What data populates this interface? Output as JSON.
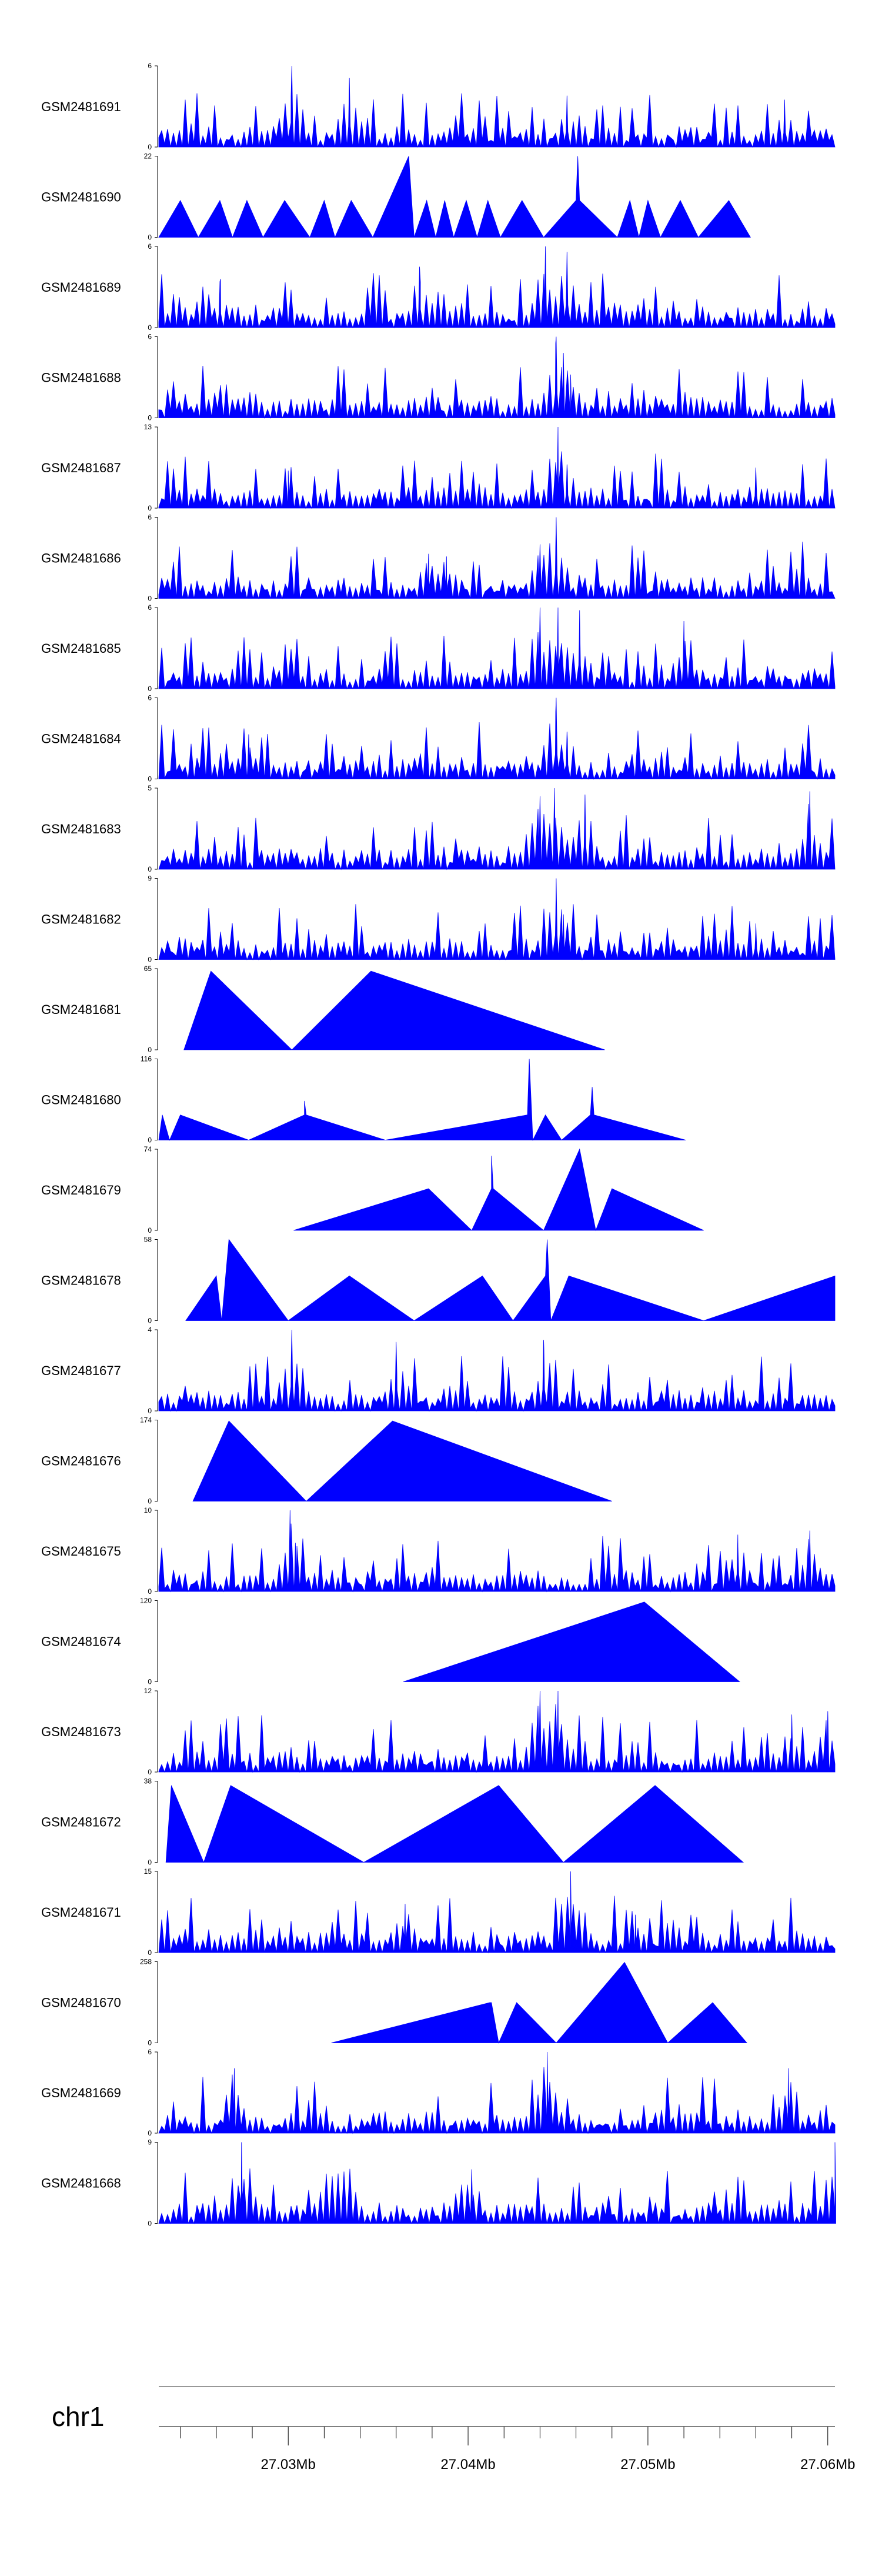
{
  "chart_data": {
    "type": "area",
    "title": "",
    "chromosome": "chr1",
    "xlim": [
      27.0228,
      27.0604
    ],
    "x_axis": {
      "major_ticks": [
        27.03,
        27.04,
        27.05,
        27.06
      ],
      "major_labels": [
        "27.03Mb",
        "27.04Mb",
        "27.05Mb",
        "27.06Mb"
      ],
      "minor_ticks": [
        27.024,
        27.026,
        27.028,
        27.032,
        27.034,
        27.036,
        27.038,
        27.042,
        27.044,
        27.046,
        27.048,
        27.052,
        27.054,
        27.056,
        27.058
      ]
    },
    "color": "#0000ff",
    "tracks": [
      {
        "name": "GSM2481691",
        "ymax": 6,
        "style": "dense",
        "range": [
          27.0228,
          27.0604
        ],
        "peaks": [
          [
            27.0302,
            6.0
          ],
          [
            27.0334,
            5.1
          ],
          [
            27.0455,
            3.8
          ],
          [
            27.0576,
            3.5
          ]
        ]
      },
      {
        "name": "GSM2481690",
        "ymax": 22,
        "style": "sparse",
        "points": [
          [
            27.0228,
            0
          ],
          [
            27.024,
            10
          ],
          [
            27.025,
            0
          ],
          [
            27.0262,
            10
          ],
          [
            27.0269,
            0
          ],
          [
            27.0277,
            10
          ],
          [
            27.0286,
            0
          ],
          [
            27.0298,
            10
          ],
          [
            27.0312,
            0
          ],
          [
            27.032,
            10
          ],
          [
            27.0326,
            0
          ],
          [
            27.0335,
            10
          ],
          [
            27.0347,
            0
          ],
          [
            27.0367,
            22
          ],
          [
            27.037,
            0
          ],
          [
            27.0377,
            10
          ],
          [
            27.0382,
            0
          ],
          [
            27.0387,
            10
          ],
          [
            27.0392,
            0
          ],
          [
            27.0399,
            10
          ],
          [
            27.0405,
            0
          ],
          [
            27.0411,
            10
          ],
          [
            27.0418,
            0
          ],
          [
            27.043,
            10
          ],
          [
            27.0442,
            0
          ],
          [
            27.046,
            10
          ],
          [
            27.0461,
            22
          ],
          [
            27.0462,
            10
          ],
          [
            27.0483,
            0
          ],
          [
            27.049,
            10
          ],
          [
            27.0495,
            0
          ],
          [
            27.05,
            10
          ],
          [
            27.0507,
            0
          ],
          [
            27.0518,
            10
          ],
          [
            27.0528,
            0
          ],
          [
            27.0545,
            10
          ],
          [
            27.0557,
            0
          ]
        ]
      },
      {
        "name": "GSM2481689",
        "ymax": 6,
        "style": "dense",
        "range": [
          27.0228,
          27.0604
        ],
        "peaks": [
          [
            27.0443,
            6.0
          ],
          [
            27.0455,
            5.6
          ],
          [
            27.0373,
            4.5
          ],
          [
            27.0262,
            3.4
          ]
        ]
      },
      {
        "name": "GSM2481688",
        "ymax": 6,
        "style": "dense",
        "range": [
          27.0228,
          27.0604
        ],
        "peaks": [
          [
            27.0449,
            6.0
          ],
          [
            27.0453,
            4.8
          ],
          [
            27.0457,
            3.2
          ]
        ]
      },
      {
        "name": "GSM2481687",
        "ymax": 13,
        "style": "dense",
        "range": [
          27.0228,
          27.0604
        ],
        "peaks": [
          [
            27.045,
            13.0
          ],
          [
            27.0455,
            7.0
          ],
          [
            27.03,
            6.0
          ],
          [
            27.056,
            6.5
          ]
        ]
      },
      {
        "name": "GSM2481686",
        "ymax": 6,
        "style": "dense",
        "range": [
          27.0228,
          27.0604
        ],
        "peaks": [
          [
            27.0449,
            6.0
          ],
          [
            27.044,
            4.0
          ],
          [
            27.0378,
            3.3
          ],
          [
            27.0388,
            3.1
          ]
        ]
      },
      {
        "name": "GSM2481685",
        "ymax": 6,
        "style": "dense",
        "range": [
          27.0228,
          27.0604
        ],
        "peaks": [
          [
            27.044,
            6.0
          ],
          [
            27.045,
            6.0
          ],
          [
            27.0462,
            5.8
          ],
          [
            27.052,
            5.0
          ]
        ]
      },
      {
        "name": "GSM2481684",
        "ymax": 6,
        "style": "dense",
        "range": [
          27.0228,
          27.0604
        ],
        "peaks": [
          [
            27.0449,
            6.0
          ],
          [
            27.0455,
            3.5
          ],
          [
            27.0278,
            3.3
          ]
        ]
      },
      {
        "name": "GSM2481683",
        "ymax": 5,
        "style": "dense",
        "range": [
          27.0228,
          27.0604
        ],
        "peaks": [
          [
            27.0448,
            5.0
          ],
          [
            27.044,
            4.5
          ],
          [
            27.059,
            4.8
          ],
          [
            27.0465,
            4.6
          ]
        ]
      },
      {
        "name": "GSM2481682",
        "ymax": 9,
        "style": "dense",
        "range": [
          27.0228,
          27.0604
        ],
        "peaks": [
          [
            27.0449,
            9.0
          ],
          [
            27.0453,
            5.0
          ],
          [
            27.056,
            4.0
          ]
        ]
      },
      {
        "name": "GSM2481681",
        "ymax": 65,
        "style": "sparse",
        "points": [
          [
            27.0242,
            0
          ],
          [
            27.0257,
            63
          ],
          [
            27.0302,
            0
          ],
          [
            27.0346,
            63
          ],
          [
            27.0476,
            0
          ]
        ]
      },
      {
        "name": "GSM2481680",
        "ymax": 116,
        "style": "sparse",
        "points": [
          [
            27.0228,
            0
          ],
          [
            27.023,
            36
          ],
          [
            27.0234,
            0
          ],
          [
            27.024,
            36
          ],
          [
            27.0278,
            0
          ],
          [
            27.0309,
            36
          ],
          [
            27.0309,
            56
          ],
          [
            27.031,
            36
          ],
          [
            27.0354,
            0
          ],
          [
            27.0433,
            36
          ],
          [
            27.0434,
            116
          ],
          [
            27.0436,
            0
          ],
          [
            27.0443,
            36
          ],
          [
            27.0452,
            0
          ],
          [
            27.0468,
            36
          ],
          [
            27.0469,
            76
          ],
          [
            27.047,
            36
          ],
          [
            27.0521,
            0
          ]
        ]
      },
      {
        "name": "GSM2481679",
        "ymax": 74,
        "style": "sparse",
        "points": [
          [
            27.0303,
            0
          ],
          [
            27.0378,
            38
          ],
          [
            27.0402,
            0
          ],
          [
            27.0413,
            38
          ],
          [
            27.0413,
            68
          ],
          [
            27.0414,
            38
          ],
          [
            27.0442,
            0
          ],
          [
            27.0462,
            74
          ],
          [
            27.0471,
            0
          ],
          [
            27.048,
            38
          ],
          [
            27.0531,
            0
          ]
        ]
      },
      {
        "name": "GSM2481678",
        "ymax": 58,
        "style": "sparse",
        "points": [
          [
            27.0243,
            0
          ],
          [
            27.026,
            32
          ],
          [
            27.0263,
            0
          ],
          [
            27.0267,
            58
          ],
          [
            27.03,
            0
          ],
          [
            27.0334,
            32
          ],
          [
            27.037,
            0
          ],
          [
            27.0408,
            32
          ],
          [
            27.0425,
            0
          ],
          [
            27.0443,
            32
          ],
          [
            27.0444,
            58
          ],
          [
            27.0446,
            0
          ],
          [
            27.0456,
            32
          ],
          [
            27.0531,
            0
          ],
          [
            27.0604,
            32
          ],
          [
            27.0604,
            0
          ]
        ]
      },
      {
        "name": "GSM2481677",
        "ymax": 4,
        "style": "dense",
        "range": [
          27.0228,
          27.0604
        ],
        "peaks": [
          [
            27.0302,
            4.0
          ],
          [
            27.0442,
            3.5
          ],
          [
            27.036,
            3.4
          ]
        ]
      },
      {
        "name": "GSM2481676",
        "ymax": 174,
        "style": "sparse",
        "points": [
          [
            27.0247,
            0
          ],
          [
            27.0267,
            172
          ],
          [
            27.031,
            0
          ],
          [
            27.0358,
            172
          ],
          [
            27.048,
            0
          ]
        ]
      },
      {
        "name": "GSM2481675",
        "ymax": 10,
        "style": "dense",
        "range": [
          27.0228,
          27.0604
        ],
        "peaks": [
          [
            27.0301,
            10.0
          ],
          [
            27.0304,
            6.0
          ],
          [
            27.055,
            7.0
          ],
          [
            27.059,
            7.5
          ]
        ]
      },
      {
        "name": "GSM2481674",
        "ymax": 120,
        "style": "sparse",
        "points": [
          [
            27.0364,
            0
          ],
          [
            27.0498,
            118
          ],
          [
            27.0551,
            0
          ]
        ]
      },
      {
        "name": "GSM2481673",
        "ymax": 12,
        "style": "dense",
        "range": [
          27.0228,
          27.0604
        ],
        "peaks": [
          [
            27.044,
            12.0
          ],
          [
            27.045,
            12.0
          ],
          [
            27.06,
            9.0
          ],
          [
            27.058,
            8.5
          ]
        ]
      },
      {
        "name": "GSM2481672",
        "ymax": 38,
        "style": "sparse",
        "points": [
          [
            27.0232,
            0
          ],
          [
            27.0235,
            36
          ],
          [
            27.0253,
            0
          ],
          [
            27.0268,
            36
          ],
          [
            27.0342,
            0
          ],
          [
            27.0417,
            36
          ],
          [
            27.0453,
            0
          ],
          [
            27.0504,
            36
          ],
          [
            27.0553,
            0
          ]
        ]
      },
      {
        "name": "GSM2481671",
        "ymax": 15,
        "style": "dense",
        "range": [
          27.0228,
          27.0604
        ],
        "peaks": [
          [
            27.0457,
            15.0
          ],
          [
            27.0365,
            9.0
          ],
          [
            27.0493,
            7.0
          ]
        ]
      },
      {
        "name": "GSM2481670",
        "ymax": 258,
        "style": "sparse",
        "points": [
          [
            27.0324,
            0
          ],
          [
            27.0412,
            128
          ],
          [
            27.0413,
            128
          ],
          [
            27.0417,
            0
          ],
          [
            27.0427,
            128
          ],
          [
            27.0449,
            0
          ],
          [
            27.0487,
            256
          ],
          [
            27.0511,
            0
          ],
          [
            27.0536,
            128
          ],
          [
            27.0555,
            0
          ]
        ]
      },
      {
        "name": "GSM2481669",
        "ymax": 6,
        "style": "dense",
        "range": [
          27.0228,
          27.0604
        ],
        "peaks": [
          [
            27.0444,
            6.0
          ],
          [
            27.027,
            4.8
          ],
          [
            27.0578,
            4.8
          ]
        ]
      },
      {
        "name": "GSM2481668",
        "ymax": 9,
        "style": "dense",
        "range": [
          27.0228,
          27.0604
        ],
        "peaks": [
          [
            27.0274,
            9.0
          ],
          [
            27.0604,
            9.0
          ],
          [
            27.0402,
            6.0
          ]
        ]
      }
    ]
  }
}
